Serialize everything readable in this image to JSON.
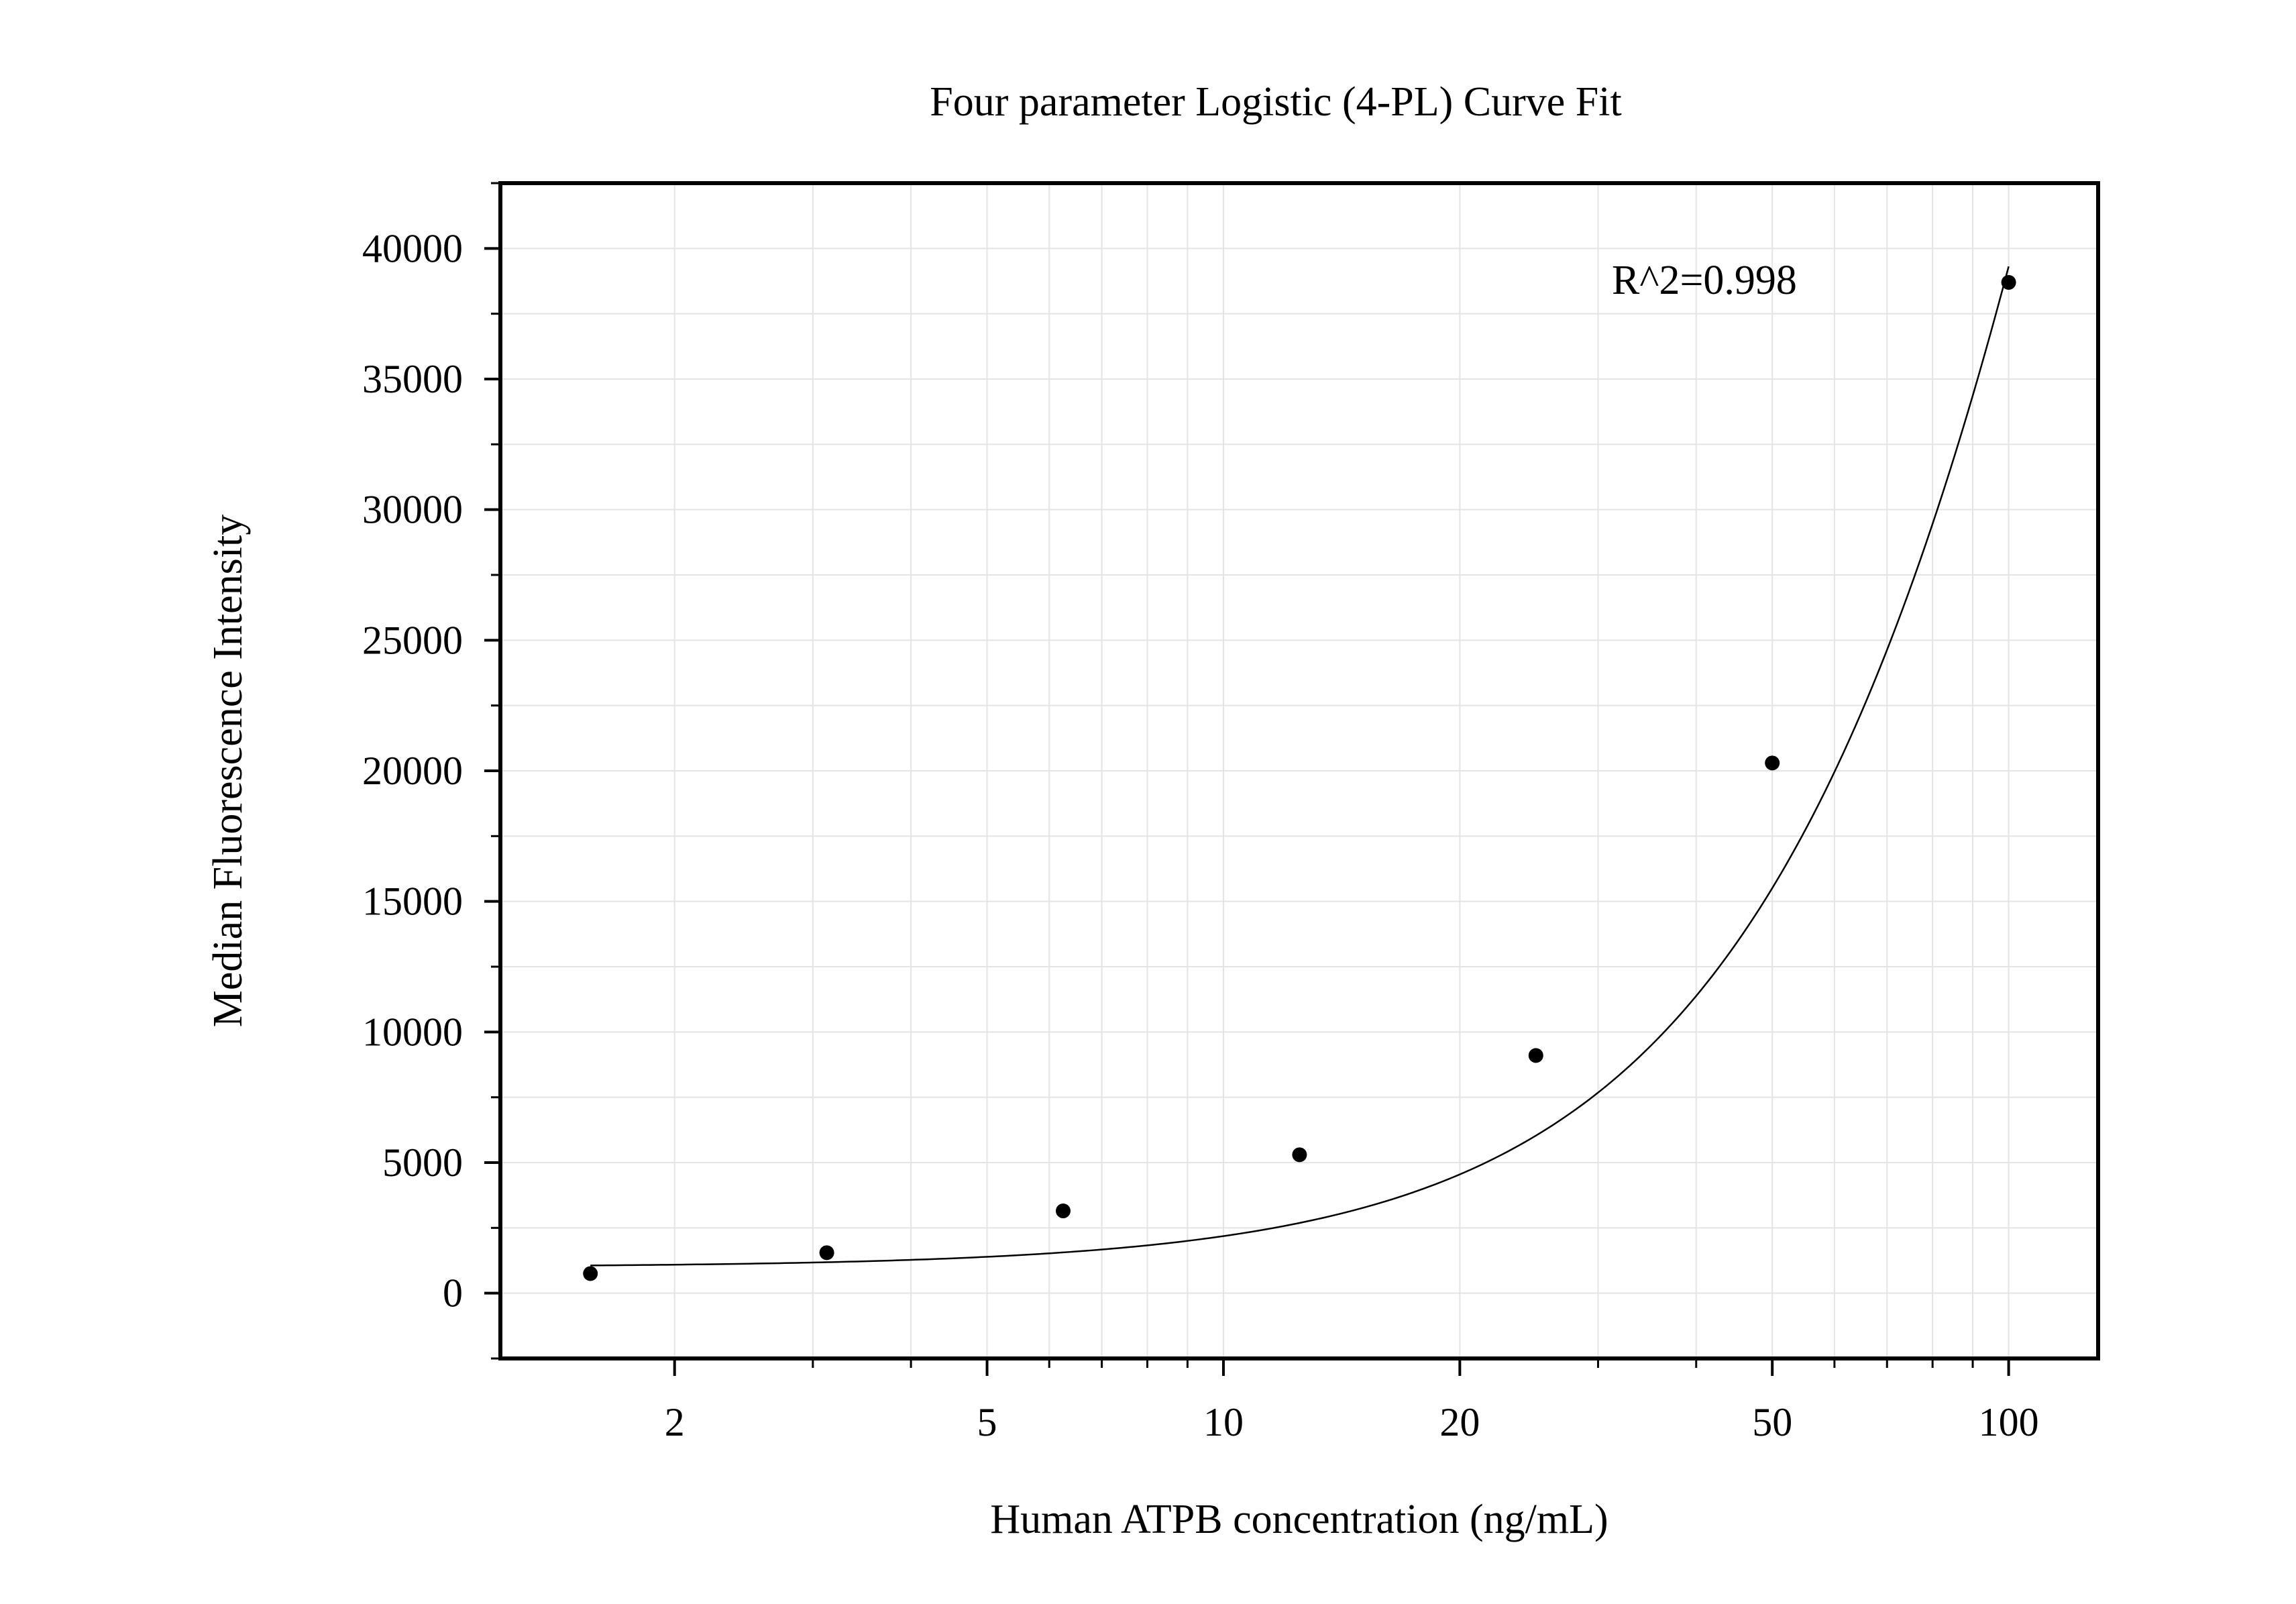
{
  "chart_data": {
    "type": "scatter",
    "title": "Four parameter Logistic (4-PL) Curve Fit",
    "xlabel": "Human ATPB concentration (ng/mL)",
    "ylabel": "Median Fluorescence Intensity",
    "x_scale": "log",
    "xlim": [
      1.2,
      130
    ],
    "ylim": [
      -2500,
      42500
    ],
    "x_ticks": [
      2,
      5,
      10,
      20,
      50,
      100
    ],
    "x_tick_labels": [
      "2",
      "5",
      "10",
      "20",
      "50",
      "100"
    ],
    "y_ticks": [
      0,
      5000,
      10000,
      15000,
      20000,
      25000,
      30000,
      35000,
      40000
    ],
    "y_tick_labels": [
      "0",
      "5000",
      "10000",
      "15000",
      "20000",
      "25000",
      "30000",
      "35000",
      "40000"
    ],
    "grid": true,
    "annotation": "R^2=0.998",
    "series": [
      {
        "type": "scatter",
        "x": [
          1.5625,
          3.125,
          6.25,
          12.5,
          25,
          50,
          100
        ],
        "y": [
          750,
          1550,
          3150,
          5300,
          9100,
          20300,
          38700
        ]
      }
    ],
    "fit": {
      "type": "line",
      "x_range": [
        1.5625,
        100
      ],
      "params": {
        "A": 1000,
        "B": 1.6,
        "C": 245,
        "D": 200000
      }
    },
    "colors": {
      "points": "#000000",
      "curve": "#000000",
      "grid": "#e4e4e4",
      "axis": "#000000"
    }
  }
}
